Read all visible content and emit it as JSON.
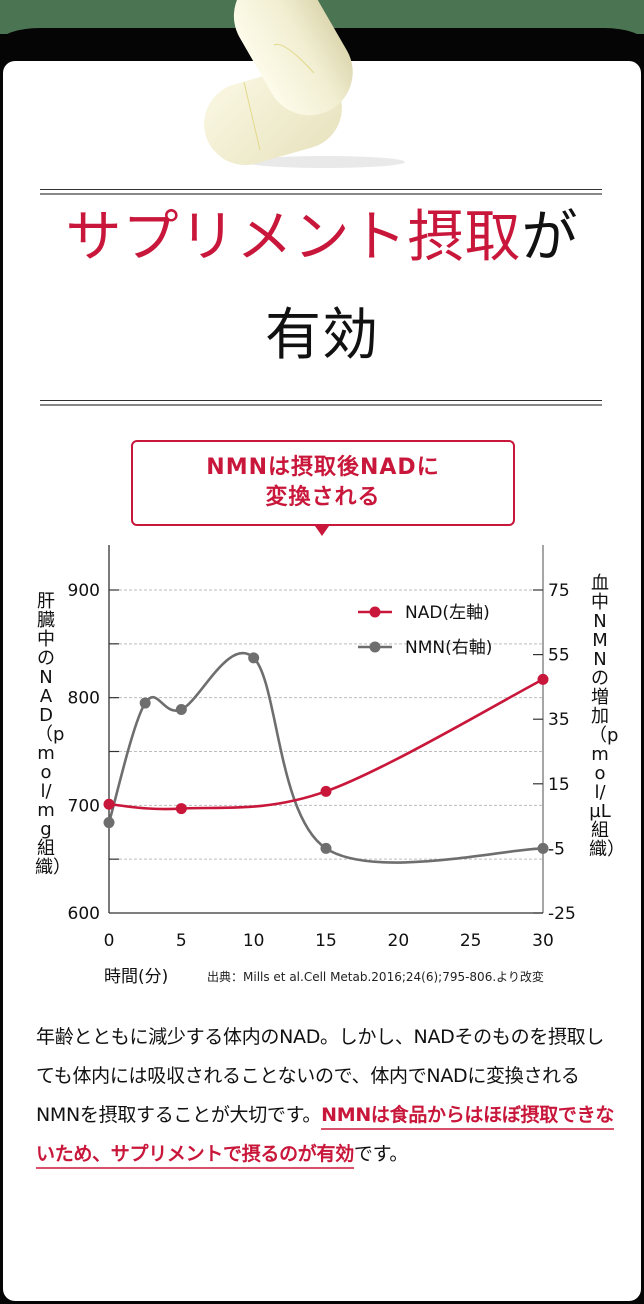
{
  "colors": {
    "accent_red": "#c8173a",
    "nmn_gray": "#6e6e6e",
    "top_band_green": "#4a7452",
    "frame_black": "#050505"
  },
  "hero": {
    "image": "capsules-icon",
    "headline_red": "サプリメント摂取",
    "headline_black_1": "が",
    "headline_line2": "有効"
  },
  "callout": {
    "line1": "NMNは摂取後NADに",
    "line2": "変換される"
  },
  "chart_data": {
    "type": "line",
    "title": "",
    "x": [
      0,
      2.5,
      5,
      10,
      15,
      30
    ],
    "xticks": [
      0,
      5,
      10,
      15,
      20,
      25,
      30
    ],
    "xlabel": "時間(分)",
    "xlim": [
      0,
      30
    ],
    "ylabel_left": "肝臓中のNAD（pmol/mg組織）",
    "ylabel_right": "血中NMNの増加（pmol/µL組織）",
    "ylim_left": [
      600,
      900
    ],
    "yticks_left": [
      600,
      700,
      800,
      900
    ],
    "ylim_right": [
      -25,
      75
    ],
    "yticks_right": [
      -25,
      -5,
      15,
      35,
      55,
      75
    ],
    "grid": "horizontal dashed",
    "legend_position": "upper right",
    "series": [
      {
        "name": "NAD(左軸)",
        "axis": "left",
        "color": "#c8173a",
        "x": [
          0,
          5,
          15,
          30
        ],
        "values": [
          701,
          697,
          713,
          817
        ]
      },
      {
        "name": "NMN(右軸)",
        "axis": "right",
        "color": "#6e6e6e",
        "x": [
          0,
          2.5,
          5,
          10,
          15,
          30
        ],
        "values": [
          3,
          40,
          38,
          54,
          -5,
          -5
        ]
      }
    ],
    "source": "出典：Mills et al.Cell Metab.2016;24(6);795-806.より改変"
  },
  "chart_labels": {
    "y_left_title": "肝臓中のNAD（pmol/mg組織）",
    "y_right_title": "血中NMNの増加（pmol/µL組織）",
    "x_title": "時間(分)",
    "legend_nad": "NAD(左軸)",
    "legend_nmn": "NMN(右軸)",
    "source": "出典：Mills et al.Cell Metab.2016;24(6);795-806.より改変"
  },
  "body": {
    "text_plain": "年齢とともに減少する体内のNAD。しかし、NADそのものを摂取しても体内には吸収されることないので、体内でNADに変換されるNMNを摂取することが大切です。",
    "text_highlight": "NMNは食品からはほぼ摂取できないため、サプリメントで摂るのが有効",
    "text_tail": "です。"
  }
}
